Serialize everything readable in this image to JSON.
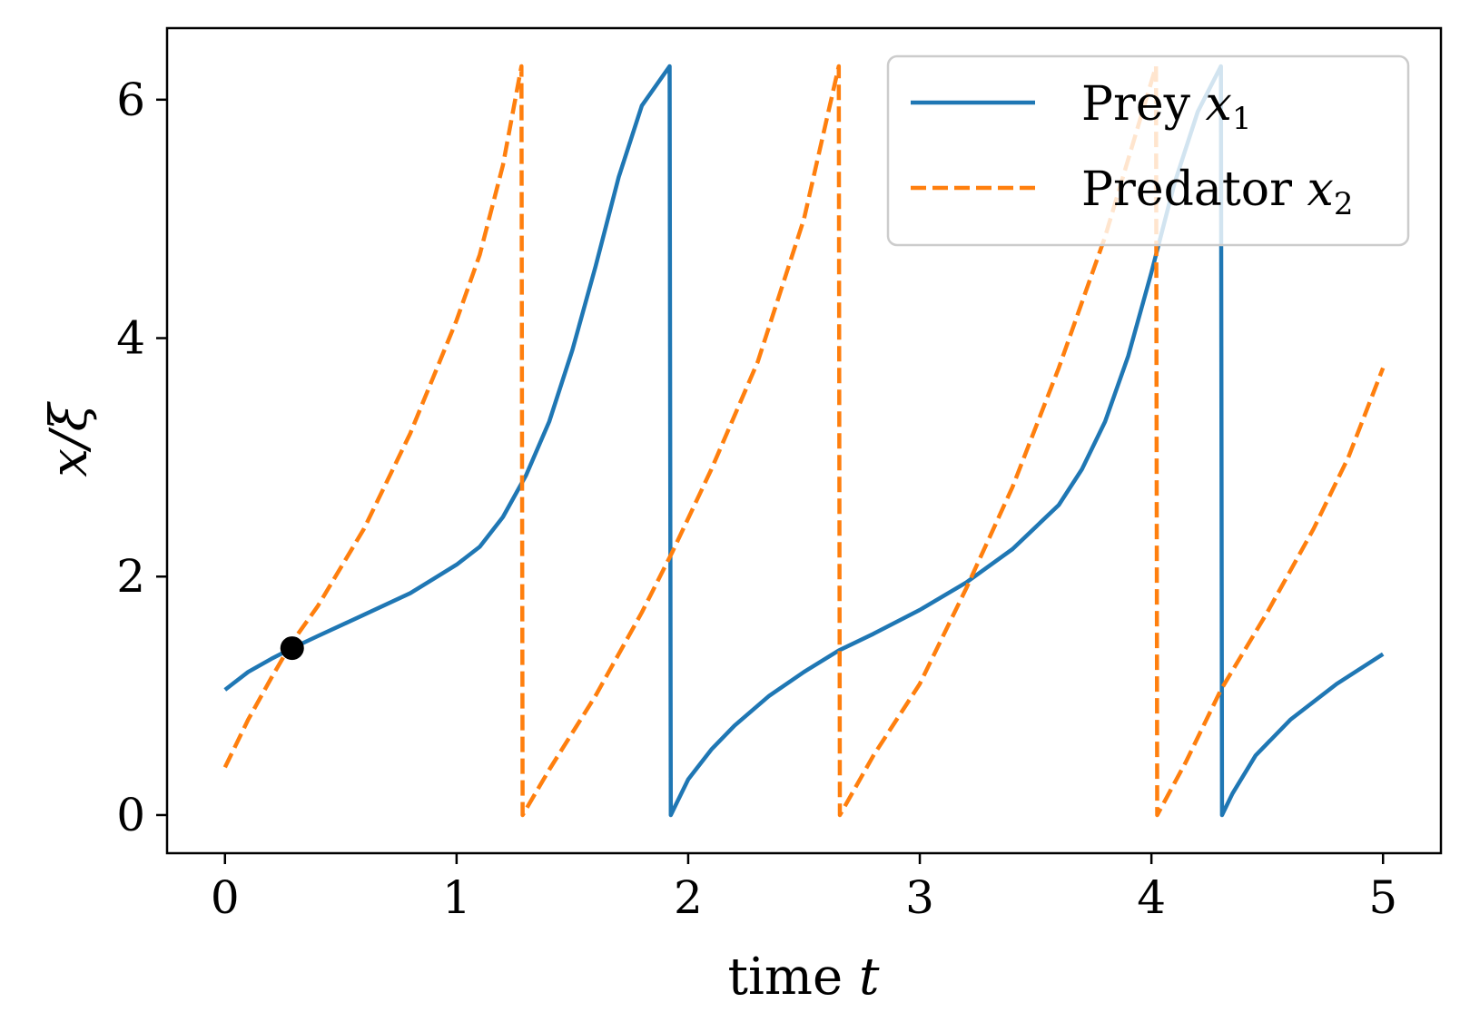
{
  "chart_data": {
    "type": "line",
    "title": "",
    "xlabel": "time t",
    "ylabel": "x/ξ",
    "xlim": [
      -0.25,
      5.25
    ],
    "ylim": [
      -0.32,
      6.6
    ],
    "xticks": [
      0,
      1,
      2,
      3,
      4,
      5
    ],
    "yticks": [
      0,
      2,
      4,
      6
    ],
    "xtick_labels": [
      "0",
      "1",
      "2",
      "3",
      "4",
      "5"
    ],
    "ytick_labels": [
      "0",
      "2",
      "4",
      "6"
    ],
    "grid": false,
    "legend_position": "top-right",
    "series": [
      {
        "name": "Prey x1",
        "color": "#1f77b4",
        "linestyle": "solid",
        "points": [
          [
            0.0,
            1.05
          ],
          [
            0.1,
            1.2
          ],
          [
            0.2,
            1.31
          ],
          [
            0.29,
            1.4
          ],
          [
            0.4,
            1.5
          ],
          [
            0.6,
            1.68
          ],
          [
            0.8,
            1.86
          ],
          [
            1.0,
            2.1
          ],
          [
            1.1,
            2.25
          ],
          [
            1.2,
            2.5
          ],
          [
            1.3,
            2.85
          ],
          [
            1.4,
            3.3
          ],
          [
            1.5,
            3.9
          ],
          [
            1.6,
            4.6
          ],
          [
            1.7,
            5.35
          ],
          [
            1.8,
            5.95
          ],
          [
            1.92,
            6.28
          ],
          [
            1.925,
            0.0
          ],
          [
            1.95,
            0.1
          ],
          [
            2.0,
            0.3
          ],
          [
            2.1,
            0.55
          ],
          [
            2.2,
            0.75
          ],
          [
            2.35,
            1.0
          ],
          [
            2.5,
            1.2
          ],
          [
            2.65,
            1.38
          ],
          [
            2.8,
            1.52
          ],
          [
            3.0,
            1.72
          ],
          [
            3.2,
            1.95
          ],
          [
            3.4,
            2.23
          ],
          [
            3.6,
            2.6
          ],
          [
            3.7,
            2.9
          ],
          [
            3.8,
            3.3
          ],
          [
            3.9,
            3.85
          ],
          [
            4.0,
            4.55
          ],
          [
            4.1,
            5.3
          ],
          [
            4.2,
            5.9
          ],
          [
            4.3,
            6.28
          ],
          [
            4.305,
            0.0
          ],
          [
            4.35,
            0.18
          ],
          [
            4.45,
            0.5
          ],
          [
            4.6,
            0.8
          ],
          [
            4.8,
            1.1
          ],
          [
            5.0,
            1.35
          ]
        ]
      },
      {
        "name": "Predator x2",
        "color": "#ff7f0e",
        "linestyle": "dashed",
        "points": [
          [
            0.0,
            0.4
          ],
          [
            0.1,
            0.8
          ],
          [
            0.2,
            1.15
          ],
          [
            0.29,
            1.45
          ],
          [
            0.4,
            1.75
          ],
          [
            0.6,
            2.4
          ],
          [
            0.8,
            3.2
          ],
          [
            1.0,
            4.15
          ],
          [
            1.1,
            4.7
          ],
          [
            1.2,
            5.45
          ],
          [
            1.28,
            6.28
          ],
          [
            1.285,
            0.0
          ],
          [
            1.4,
            0.38
          ],
          [
            1.6,
            1.0
          ],
          [
            1.8,
            1.7
          ],
          [
            1.93,
            2.2
          ],
          [
            2.1,
            2.9
          ],
          [
            2.3,
            3.8
          ],
          [
            2.5,
            5.0
          ],
          [
            2.65,
            6.28
          ],
          [
            2.655,
            0.0
          ],
          [
            2.8,
            0.5
          ],
          [
            3.0,
            1.1
          ],
          [
            3.2,
            1.9
          ],
          [
            3.4,
            2.75
          ],
          [
            3.6,
            3.75
          ],
          [
            3.8,
            4.85
          ],
          [
            4.02,
            6.28
          ],
          [
            4.025,
            0.0
          ],
          [
            4.15,
            0.45
          ],
          [
            4.3,
            1.05
          ],
          [
            4.5,
            1.7
          ],
          [
            4.7,
            2.4
          ],
          [
            4.85,
            3.0
          ],
          [
            5.0,
            3.75
          ]
        ]
      }
    ],
    "markers": [
      {
        "x": 0.29,
        "y": 1.4,
        "color": "#000000"
      }
    ]
  },
  "legend": [
    {
      "text": "Prey ",
      "math": "x",
      "sub": "1"
    },
    {
      "text": "Predator ",
      "math": "x",
      "sub": "2"
    }
  ],
  "axis_label_parts": {
    "x_text": "time ",
    "x_math": "t",
    "y_math": "x/ξ"
  }
}
